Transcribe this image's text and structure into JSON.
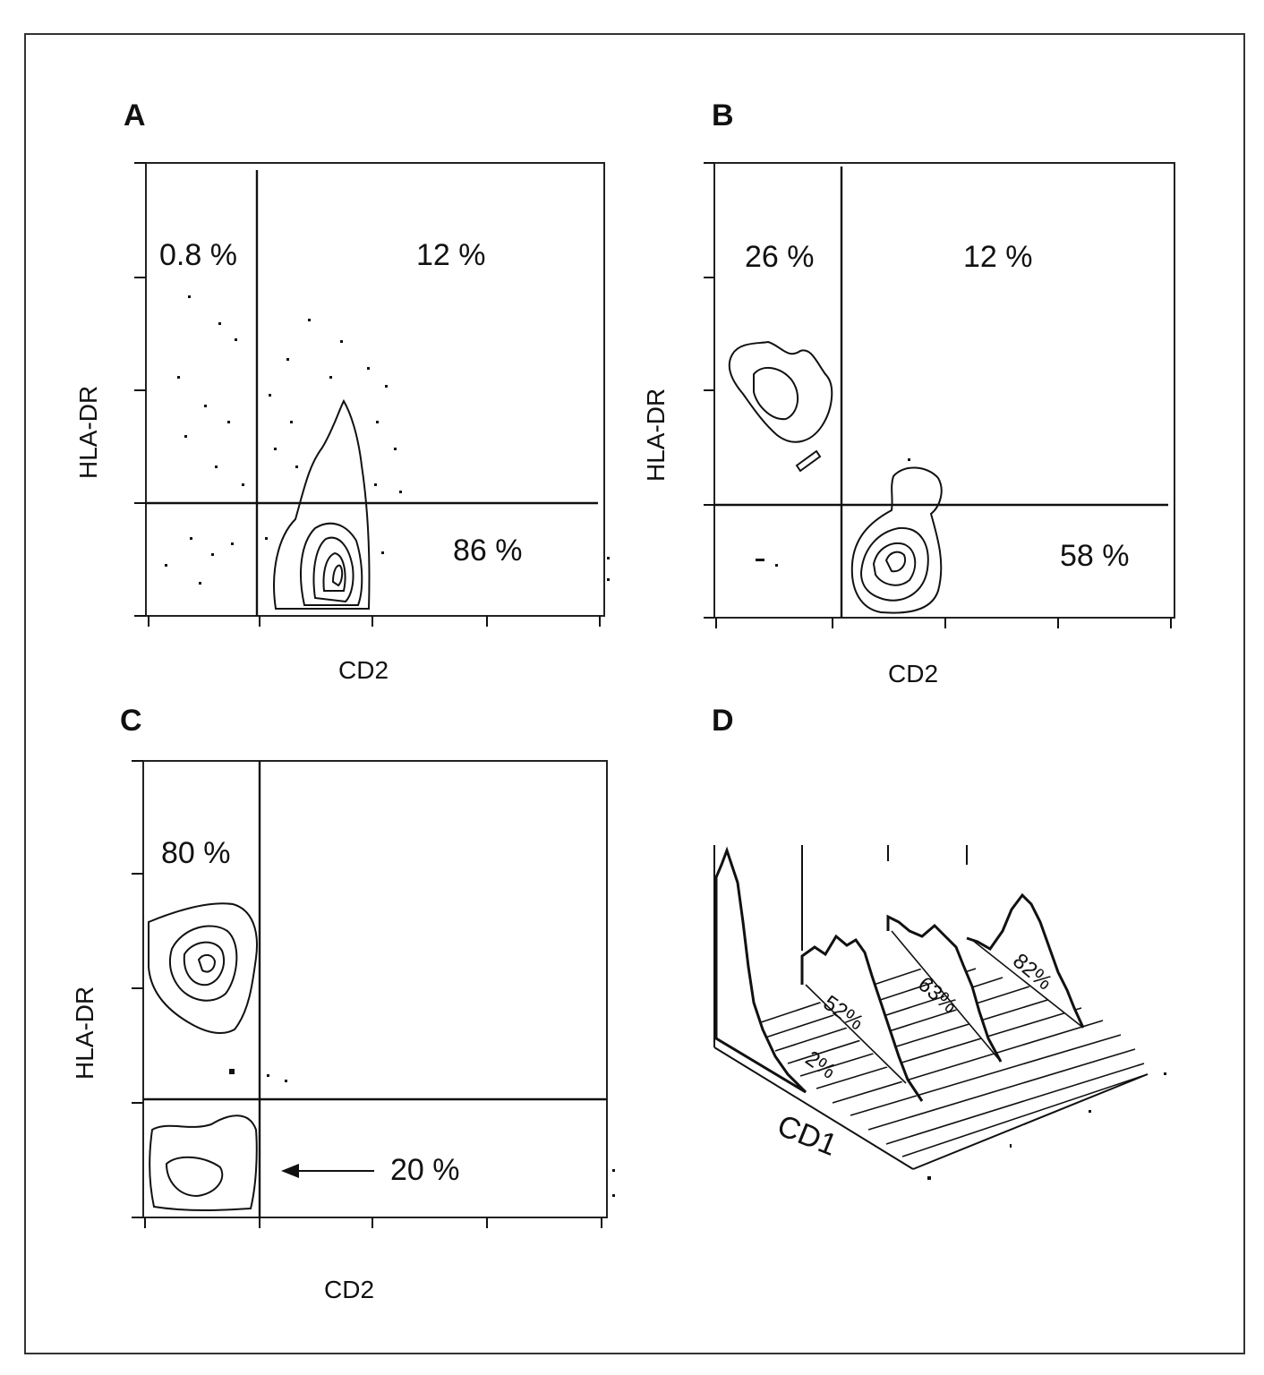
{
  "figure": {
    "panels": {
      "A": {
        "letter": "A",
        "xlabel": "CD2",
        "ylabel": "HLA-DR",
        "quadrants": {
          "ul": "0.8 %",
          "ur": "12 %",
          "lr": "86 %"
        }
      },
      "B": {
        "letter": "B",
        "xlabel": "CD2",
        "ylabel": "HLA-DR",
        "quadrants": {
          "ul": "26 %",
          "ur": "12 %",
          "lr": "58 %"
        }
      },
      "C": {
        "letter": "C",
        "xlabel": "CD2",
        "ylabel": "HLA-DR",
        "quadrants": {
          "ul": "80 %",
          "ll": "20 %"
        }
      },
      "D": {
        "letter": "D",
        "axis_label": "CD1",
        "percentages": [
          "2%",
          "52%",
          "63%",
          "82%"
        ]
      }
    }
  },
  "colors": {
    "ink": "#111111",
    "background": "#ffffff"
  }
}
